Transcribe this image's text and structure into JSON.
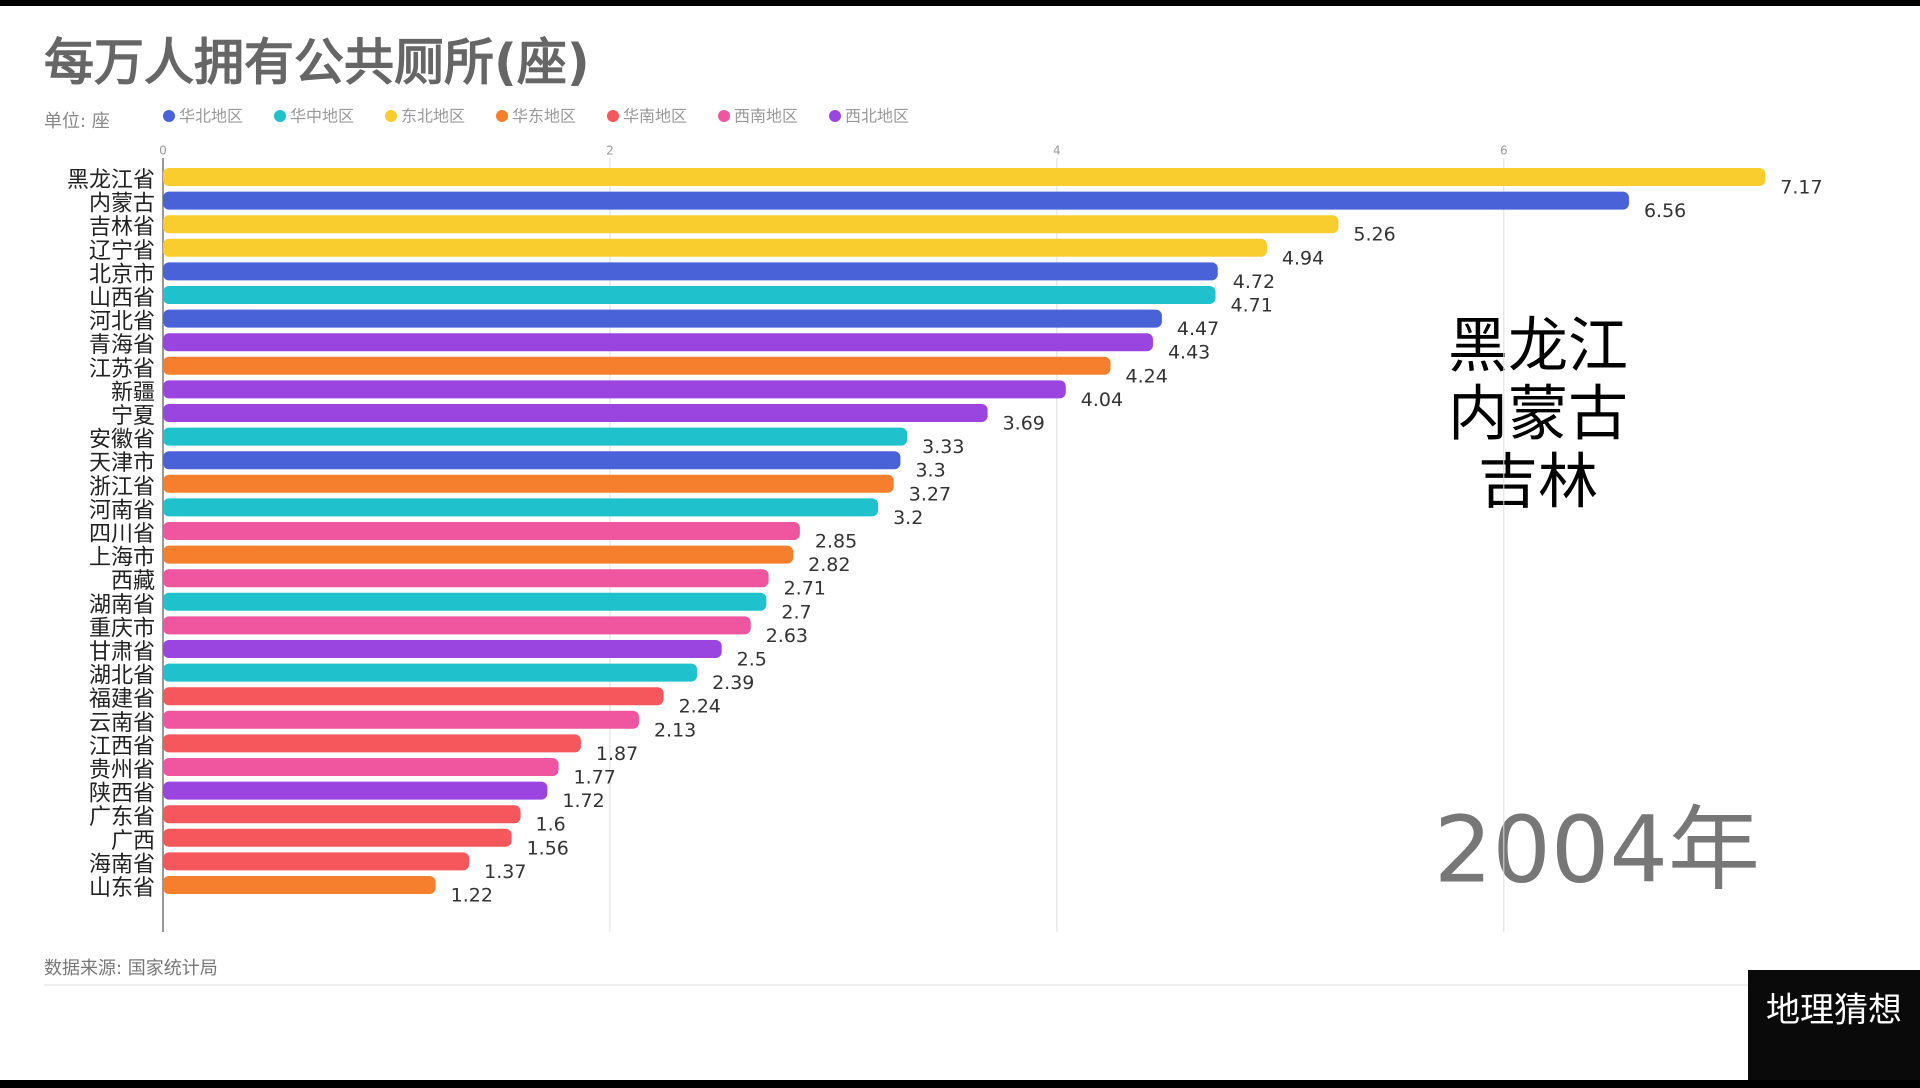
{
  "chart_data": {
    "type": "bar",
    "orientation": "horizontal",
    "title": "每万人拥有公共厕所(座)",
    "subtitle": "单位: 座",
    "source": "数据来源: 国家统计局",
    "annotation": [
      "黑龙江",
      "内蒙古",
      "吉林"
    ],
    "year": "2004年",
    "watermark": "地理猜想",
    "categories": [
      "黑龙江省",
      "内蒙古",
      "吉林省",
      "辽宁省",
      "北京市",
      "山西省",
      "河北省",
      "青海省",
      "江苏省",
      "新疆",
      "宁夏",
      "安徽省",
      "天津市",
      "浙江省",
      "河南省",
      "四川省",
      "上海市",
      "西藏",
      "湖南省",
      "重庆市",
      "甘肃省",
      "湖北省",
      "福建省",
      "云南省",
      "江西省",
      "贵州省",
      "陕西省",
      "广东省",
      "广西",
      "海南省",
      "山东省"
    ],
    "series": [
      {
        "name": "华北地区",
        "color": "#4a62d8",
        "values": [
          null,
          6.56,
          null,
          null,
          4.72,
          null,
          4.47,
          null,
          null,
          null,
          null,
          null,
          3.3,
          null,
          null,
          null,
          null,
          null,
          null,
          null,
          null,
          null,
          null,
          null,
          null,
          null,
          null,
          null,
          null,
          null,
          null
        ]
      },
      {
        "name": "华中地区",
        "color": "#1ec1cc",
        "values": [
          null,
          null,
          null,
          null,
          null,
          4.71,
          null,
          null,
          null,
          null,
          null,
          3.33,
          null,
          null,
          3.2,
          null,
          null,
          null,
          2.7,
          null,
          null,
          2.39,
          null,
          null,
          null,
          null,
          null,
          null,
          null,
          null,
          null
        ]
      },
      {
        "name": "东北地区",
        "color": "#f9cd2d",
        "values": [
          7.17,
          null,
          5.26,
          4.94,
          null,
          null,
          null,
          null,
          null,
          null,
          null,
          null,
          null,
          null,
          null,
          null,
          null,
          null,
          null,
          null,
          null,
          null,
          null,
          null,
          null,
          null,
          null,
          null,
          null,
          null,
          null
        ]
      },
      {
        "name": "华东地区",
        "color": "#f57f2c",
        "values": [
          null,
          null,
          null,
          null,
          null,
          null,
          null,
          null,
          4.24,
          null,
          null,
          null,
          null,
          3.27,
          null,
          null,
          2.82,
          null,
          null,
          null,
          null,
          null,
          null,
          null,
          null,
          null,
          null,
          null,
          null,
          null,
          1.22
        ]
      },
      {
        "name": "华南地区",
        "color": "#f5575c",
        "values": [
          null,
          null,
          null,
          null,
          null,
          null,
          null,
          null,
          null,
          null,
          null,
          null,
          null,
          null,
          null,
          null,
          null,
          null,
          null,
          null,
          null,
          null,
          2.24,
          null,
          1.87,
          null,
          null,
          1.6,
          1.56,
          1.37,
          null
        ]
      },
      {
        "name": "西南地区",
        "color": "#f0559f",
        "values": [
          null,
          null,
          null,
          null,
          null,
          null,
          null,
          null,
          null,
          null,
          null,
          null,
          null,
          null,
          null,
          2.85,
          null,
          2.71,
          null,
          2.63,
          null,
          null,
          null,
          2.13,
          null,
          1.77,
          null,
          null,
          null,
          null,
          null
        ]
      },
      {
        "name": "西北地区",
        "color": "#9a45e0",
        "values": [
          null,
          null,
          null,
          null,
          null,
          null,
          null,
          4.43,
          null,
          4.04,
          3.69,
          null,
          null,
          null,
          null,
          null,
          null,
          null,
          null,
          null,
          2.5,
          null,
          null,
          null,
          null,
          null,
          1.72,
          null,
          null,
          null,
          null
        ]
      }
    ],
    "xlim": [
      0,
      7.5
    ],
    "xticks": [
      0,
      2,
      4,
      6
    ],
    "grid": true
  }
}
